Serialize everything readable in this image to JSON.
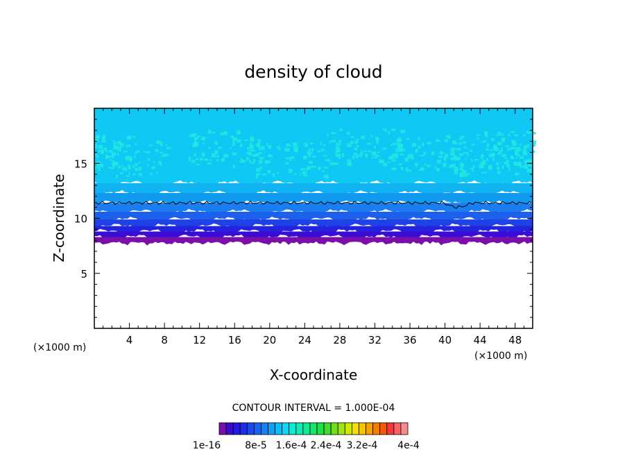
{
  "chart_data": {
    "type": "heatmap",
    "title": "density of cloud",
    "xlabel": "X-coordinate",
    "ylabel": "Z-coordinate",
    "x_unit": "(×1000 m)",
    "x_unit_right": "(×1000 m)",
    "xlim": [
      0,
      50
    ],
    "ylim": [
      0,
      20
    ],
    "x_ticks": [
      4,
      8,
      12,
      16,
      20,
      24,
      28,
      32,
      36,
      40,
      44,
      48
    ],
    "y_ticks": [
      5,
      10,
      15
    ],
    "contour_interval_label": "CONTOUR INTERVAL = 1.000E-04",
    "colorbar": {
      "colors": [
        "#7a0fa8",
        "#3c0ad2",
        "#2618e0",
        "#1e2ee6",
        "#1a48ec",
        "#1a62f0",
        "#1880f4",
        "#12a0f6",
        "#10bcf8",
        "#10d4fa",
        "#10ead4",
        "#10eab4",
        "#14e890",
        "#18e46c",
        "#20e048",
        "#40de2c",
        "#6ee020",
        "#a0e410",
        "#d0e800",
        "#f4e000",
        "#f8c400",
        "#f8a000",
        "#f87c00",
        "#f85800",
        "#f43838",
        "#f46464",
        "#f48c8c"
      ],
      "labels": [
        "1e-16",
        "8e-5",
        "1.6e-4",
        "2.4e-4",
        "3.2e-4",
        "4e-4"
      ]
    },
    "bands": [
      {
        "z_top": 20.0,
        "z_bottom": 13.2,
        "color": "#10c8f4"
      },
      {
        "z_top": 13.2,
        "z_bottom": 12.3,
        "color": "#10b2f2"
      },
      {
        "z_top": 12.3,
        "z_bottom": 11.4,
        "color": "#109af0"
      },
      {
        "z_top": 11.4,
        "z_bottom": 10.6,
        "color": "#1a7ef0"
      },
      {
        "z_top": 10.6,
        "z_bottom": 9.9,
        "color": "#1c60ec"
      },
      {
        "z_top": 9.9,
        "z_bottom": 9.3,
        "color": "#1e42e6"
      },
      {
        "z_top": 9.3,
        "z_bottom": 8.8,
        "color": "#2424de"
      },
      {
        "z_top": 8.8,
        "z_bottom": 8.3,
        "color": "#3a0cd4"
      },
      {
        "z_top": 8.3,
        "z_bottom": 7.9,
        "color": "#7a10aa"
      }
    ],
    "highlight_color": "#22e8e0",
    "contour_line_z": 11.4
  }
}
